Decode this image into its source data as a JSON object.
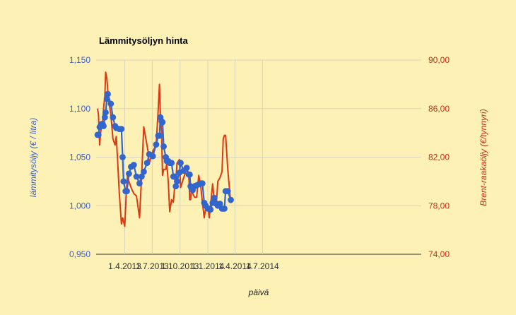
{
  "chart_data": {
    "type": "line",
    "title": "Lämmitysöljyn hinta",
    "xlabel": "päivä",
    "ylabel_left": "lämmitysöljy (€ / litra)",
    "ylabel_right": "Brent-raakaöljy (€/tynnyri)",
    "x_tick_labels": [
      "1.4.2013",
      "1.7.2013",
      "1.10.2013",
      "1.1.2014",
      "1.4.2014",
      "1.7.2014"
    ],
    "y_left": {
      "range": [
        0.95,
        1.15
      ],
      "ticks": [
        "0,950",
        "1,000",
        "1,050",
        "1,100",
        "1,150"
      ]
    },
    "y_right": {
      "range": [
        74,
        90
      ],
      "ticks": [
        "74,00",
        "78,00",
        "82,00",
        "86,00",
        "90,00"
      ]
    },
    "grid": true,
    "series": [
      {
        "axis": "left",
        "color": "#3366cc",
        "marker": "circle",
        "points": [
          [
            "2013-01-01",
            1.073
          ],
          [
            "2013-01-04",
            1.073
          ],
          [
            "2013-01-08",
            1.081
          ],
          [
            "2013-01-11",
            1.082
          ],
          [
            "2013-01-14",
            1.084
          ],
          [
            "2013-01-18",
            1.084
          ],
          [
            "2013-01-21",
            1.082
          ],
          [
            "2013-01-25",
            1.091
          ],
          [
            "2013-01-28",
            1.096
          ],
          [
            "2013-02-01",
            1.11
          ],
          [
            "2013-02-04",
            1.115
          ],
          [
            "2013-02-14",
            1.105
          ],
          [
            "2013-02-21",
            1.091
          ],
          [
            "2013-02-28",
            1.082
          ],
          [
            "2013-03-04",
            1.08
          ],
          [
            "2013-03-14",
            1.079
          ],
          [
            "2013-03-21",
            1.079
          ],
          [
            "2013-03-25",
            1.05
          ],
          [
            "2013-03-28",
            1.025
          ],
          [
            "2013-04-04",
            1.015
          ],
          [
            "2013-04-08",
            1.015
          ],
          [
            "2013-04-15",
            1.033
          ],
          [
            "2013-04-22",
            1.04
          ],
          [
            "2013-05-01",
            1.042
          ],
          [
            "2013-05-10",
            1.03
          ],
          [
            "2013-05-20",
            1.023
          ],
          [
            "2013-05-27",
            1.03
          ],
          [
            "2013-06-03",
            1.035
          ],
          [
            "2013-06-14",
            1.044
          ],
          [
            "2013-06-21",
            1.053
          ],
          [
            "2013-07-03",
            1.051
          ],
          [
            "2013-07-14",
            1.063
          ],
          [
            "2013-07-21",
            1.072
          ],
          [
            "2013-07-25",
            1.072
          ],
          [
            "2013-07-28",
            1.091
          ],
          [
            "2013-08-01",
            1.087
          ],
          [
            "2013-08-04",
            1.086
          ],
          [
            "2013-08-08",
            1.061
          ],
          [
            "2013-08-15",
            1.05
          ],
          [
            "2013-08-18",
            1.046
          ],
          [
            "2013-08-23",
            1.046
          ],
          [
            "2013-08-28",
            1.044
          ],
          [
            "2013-09-03",
            1.044
          ],
          [
            "2013-09-09",
            1.03
          ],
          [
            "2013-09-13",
            1.03
          ],
          [
            "2013-09-17",
            1.02
          ],
          [
            "2013-09-21",
            1.025
          ],
          [
            "2013-09-29",
            1.034
          ],
          [
            "2013-10-03",
            1.044
          ],
          [
            "2013-10-13",
            1.036
          ],
          [
            "2013-10-23",
            1.039
          ],
          [
            "2013-10-30",
            1.032
          ],
          [
            "2013-11-02",
            1.032
          ],
          [
            "2013-11-05",
            1.02
          ],
          [
            "2013-11-08",
            1.018
          ],
          [
            "2013-11-12",
            1.016
          ],
          [
            "2013-11-18",
            1.02
          ],
          [
            "2013-11-25",
            1.021
          ],
          [
            "2013-12-02",
            1.022
          ],
          [
            "2013-12-09",
            1.023
          ],
          [
            "2013-12-14",
            1.023
          ],
          [
            "2013-12-20",
            1.003
          ],
          [
            "2013-12-25",
            1.0
          ],
          [
            "2014-01-01",
            0.997
          ],
          [
            "2014-01-06",
            0.997
          ],
          [
            "2014-01-10",
            0.996
          ],
          [
            "2014-01-17",
            1.003
          ],
          [
            "2014-01-22",
            1.008
          ],
          [
            "2014-01-29",
            1.002
          ],
          [
            "2014-02-03",
            1.0
          ],
          [
            "2014-02-10",
            1.002
          ],
          [
            "2014-02-17",
            0.997
          ],
          [
            "2014-02-21",
            0.997
          ],
          [
            "2014-02-25",
            0.997
          ],
          [
            "2014-03-01",
            1.015
          ],
          [
            "2014-03-08",
            1.015
          ],
          [
            "2014-03-18",
            1.006
          ]
        ]
      },
      {
        "axis": "right",
        "color": "#dc3912",
        "marker": "none",
        "points": [
          [
            "2013-01-01",
            86.0
          ],
          [
            "2013-01-04",
            85.5
          ],
          [
            "2013-01-08",
            83.0
          ],
          [
            "2013-01-11",
            84.0
          ],
          [
            "2013-01-14",
            84.5
          ],
          [
            "2013-01-18",
            85.0
          ],
          [
            "2013-01-21",
            86.0
          ],
          [
            "2013-01-25",
            87.0
          ],
          [
            "2013-01-28",
            89.0
          ],
          [
            "2013-02-01",
            88.5
          ],
          [
            "2013-02-04",
            87.5
          ],
          [
            "2013-02-08",
            86.5
          ],
          [
            "2013-02-14",
            85.5
          ],
          [
            "2013-02-21",
            83.5
          ],
          [
            "2013-02-28",
            83.0
          ],
          [
            "2013-03-04",
            83.7
          ],
          [
            "2013-03-09",
            81.5
          ],
          [
            "2013-03-14",
            79.0
          ],
          [
            "2013-03-21",
            76.5
          ],
          [
            "2013-03-25",
            77.0
          ],
          [
            "2013-04-01",
            76.3
          ],
          [
            "2013-04-06",
            79.0
          ],
          [
            "2013-04-10",
            80.5
          ],
          [
            "2013-04-15",
            80.0
          ],
          [
            "2013-04-22",
            79.5
          ],
          [
            "2013-05-01",
            79.0
          ],
          [
            "2013-05-10",
            78.8
          ],
          [
            "2013-05-20",
            77.0
          ],
          [
            "2013-05-27",
            80.5
          ],
          [
            "2013-06-03",
            84.5
          ],
          [
            "2013-06-10",
            83.5
          ],
          [
            "2013-06-17",
            82.5
          ],
          [
            "2013-06-21",
            81.5
          ],
          [
            "2013-07-03",
            82.5
          ],
          [
            "2013-07-14",
            83.0
          ],
          [
            "2013-07-21",
            86.0
          ],
          [
            "2013-07-25",
            88.0
          ],
          [
            "2013-07-28",
            85.5
          ],
          [
            "2013-08-01",
            84.0
          ],
          [
            "2013-08-04",
            80.5
          ],
          [
            "2013-08-08",
            81.0
          ],
          [
            "2013-08-15",
            81.0
          ],
          [
            "2013-08-18",
            81.5
          ],
          [
            "2013-08-23",
            80.0
          ],
          [
            "2013-08-28",
            77.5
          ],
          [
            "2013-09-03",
            78.5
          ],
          [
            "2013-09-09",
            78.3
          ],
          [
            "2013-09-13",
            79.5
          ],
          [
            "2013-09-17",
            80.0
          ],
          [
            "2013-09-21",
            81.5
          ],
          [
            "2013-09-29",
            81.8
          ],
          [
            "2013-10-03",
            79.5
          ],
          [
            "2013-10-13",
            80.3
          ],
          [
            "2013-10-23",
            81.0
          ],
          [
            "2013-10-30",
            80.5
          ],
          [
            "2013-11-02",
            78.5
          ],
          [
            "2013-11-05",
            78.5
          ],
          [
            "2013-11-08",
            79.5
          ],
          [
            "2013-11-12",
            79.0
          ],
          [
            "2013-11-18",
            78.7
          ],
          [
            "2013-11-25",
            78.7
          ],
          [
            "2013-12-02",
            80.5
          ],
          [
            "2013-12-09",
            79.5
          ],
          [
            "2013-12-14",
            78.3
          ],
          [
            "2013-12-20",
            77.0
          ],
          [
            "2013-12-25",
            77.8
          ],
          [
            "2014-01-01",
            78.0
          ],
          [
            "2014-01-06",
            77.0
          ],
          [
            "2014-01-10",
            78.0
          ],
          [
            "2014-01-17",
            79.8
          ],
          [
            "2014-01-22",
            78.5
          ],
          [
            "2014-01-29",
            78.0
          ],
          [
            "2014-02-03",
            80.0
          ],
          [
            "2014-02-10",
            80.3
          ],
          [
            "2014-02-17",
            80.8
          ],
          [
            "2014-02-21",
            83.5
          ],
          [
            "2014-02-25",
            83.8
          ],
          [
            "2014-03-01",
            83.8
          ],
          [
            "2014-03-08",
            81.0
          ],
          [
            "2014-03-18",
            78.2
          ]
        ]
      }
    ]
  }
}
